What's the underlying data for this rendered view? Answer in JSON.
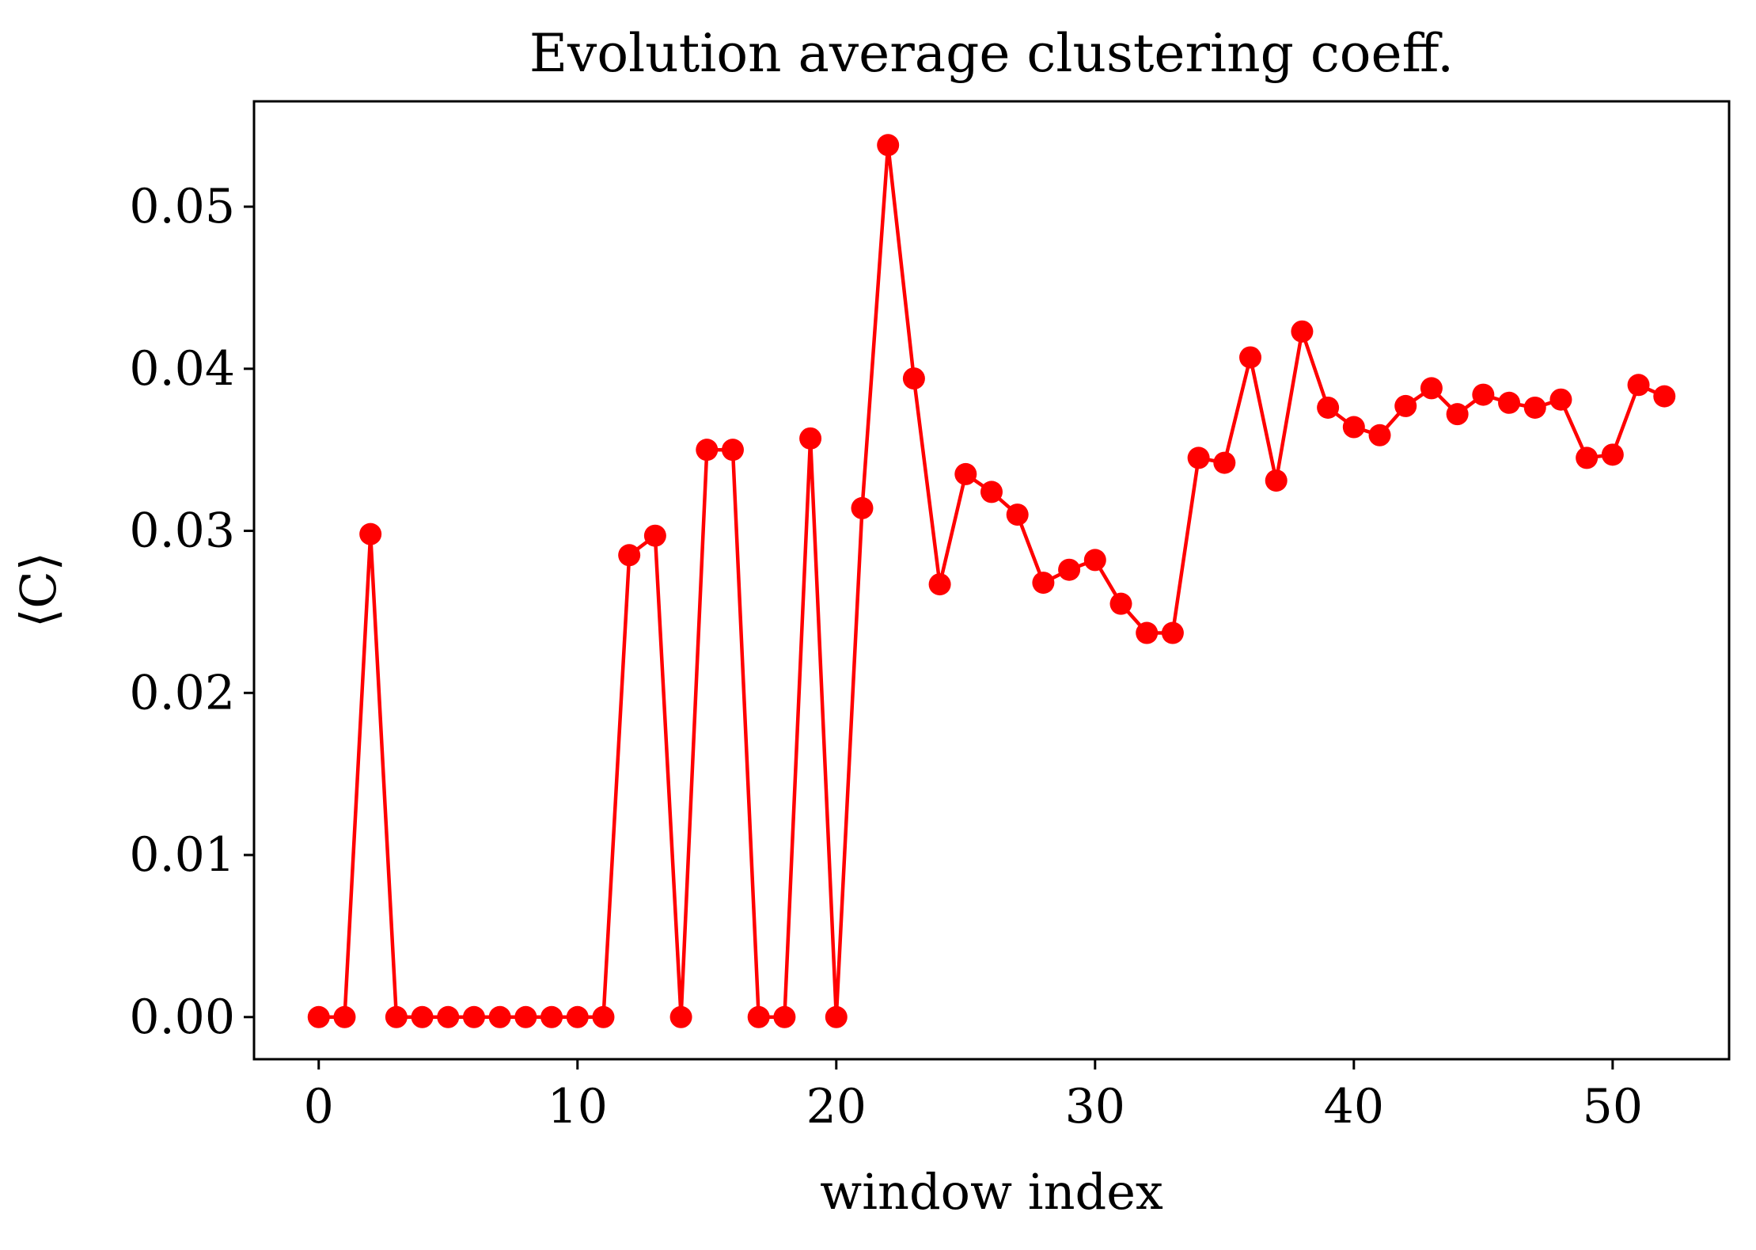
{
  "chart_data": {
    "type": "line",
    "title": "Evolution average clustering coeff.",
    "xlabel": "window index",
    "ylabel": "⟨C⟩",
    "xlim": [
      -2.5,
      54.5
    ],
    "ylim": [
      -0.0026,
      0.0565
    ],
    "xticks": [
      0,
      10,
      20,
      30,
      40,
      50
    ],
    "yticks": [
      0.0,
      0.01,
      0.02,
      0.03,
      0.04,
      0.05
    ],
    "ytick_labels": [
      "0.00",
      "0.01",
      "0.02",
      "0.03",
      "0.04",
      "0.05"
    ],
    "grid": false,
    "series": [
      {
        "color": "#ff0000",
        "marker": "circle",
        "x": [
          0,
          1,
          2,
          3,
          4,
          5,
          6,
          7,
          8,
          9,
          10,
          11,
          12,
          13,
          14,
          15,
          16,
          17,
          18,
          19,
          20,
          21,
          22,
          23,
          24,
          25,
          26,
          27,
          28,
          29,
          30,
          31,
          32,
          33,
          34,
          35,
          36,
          37,
          38,
          39,
          40,
          41,
          42,
          43,
          44,
          45,
          46,
          47,
          48,
          49,
          50,
          51,
          52
        ],
        "y": [
          0.0,
          0.0,
          0.0298,
          0.0,
          0.0,
          0.0,
          0.0,
          0.0,
          0.0,
          0.0,
          0.0,
          0.0,
          0.0285,
          0.0297,
          0.0,
          0.035,
          0.035,
          0.0,
          0.0,
          0.0357,
          0.0,
          0.0314,
          0.0538,
          0.0394,
          0.0267,
          0.0335,
          0.0324,
          0.031,
          0.0268,
          0.0276,
          0.0282,
          0.0255,
          0.0237,
          0.0237,
          0.0345,
          0.0342,
          0.0407,
          0.0331,
          0.0423,
          0.0376,
          0.0364,
          0.0359,
          0.0377,
          0.0388,
          0.0372,
          0.0384,
          0.0379,
          0.0376,
          0.0381,
          0.0345,
          0.0347,
          0.039,
          0.0383
        ]
      }
    ]
  }
}
